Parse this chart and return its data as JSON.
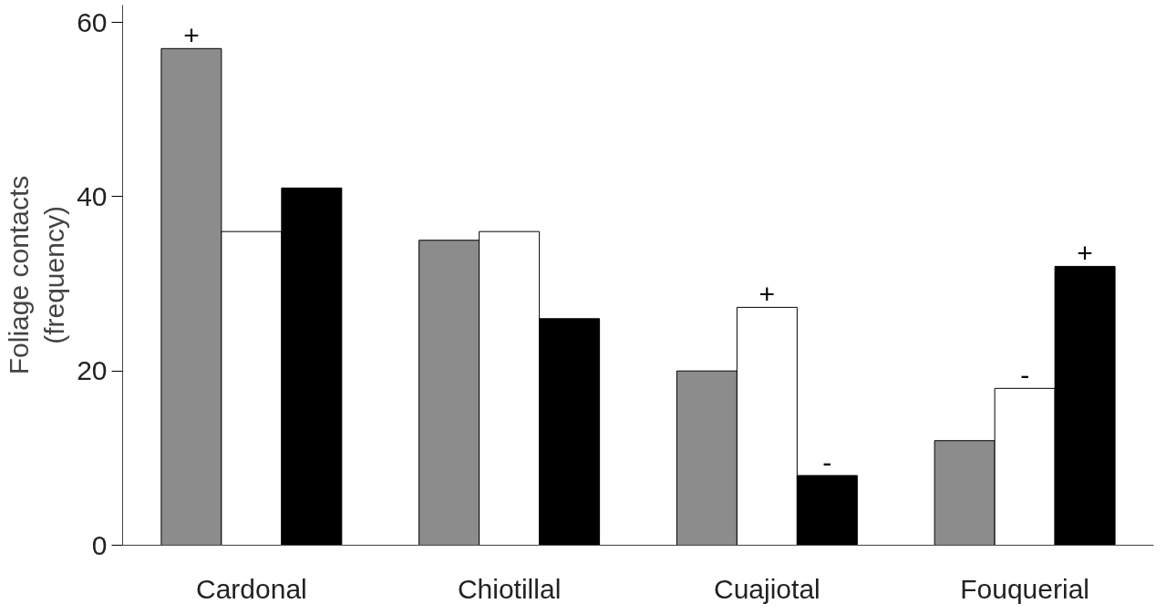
{
  "chart_data": {
    "type": "bar",
    "ylabel": "Foliage contacts\n(frequency)",
    "categories": [
      "Cardonal",
      "Chiotillal",
      "Cuajiotal",
      "Fouquerial"
    ],
    "series": [
      {
        "color": "#8c8c8c",
        "values": [
          57,
          35,
          20,
          12
        ],
        "value_labels": [
          "+",
          null,
          null,
          null
        ]
      },
      {
        "color": "#ffffff",
        "values": [
          36,
          36,
          27.3,
          18
        ],
        "value_labels": [
          null,
          null,
          "+",
          "-"
        ]
      },
      {
        "color": "#000000",
        "values": [
          41,
          26,
          8,
          32
        ],
        "value_labels": [
          null,
          null,
          "-",
          "+"
        ]
      }
    ],
    "ylim": [
      0,
      62
    ],
    "yticks": [
      0,
      20,
      40,
      60
    ],
    "grid": false
  }
}
